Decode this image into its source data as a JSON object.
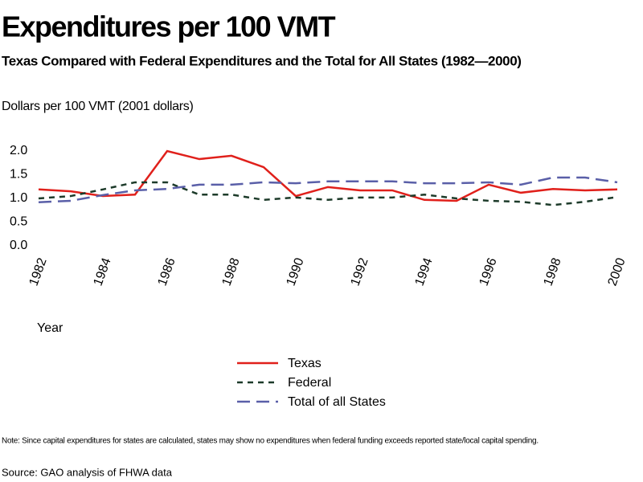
{
  "title": "Expenditures per 100 VMT",
  "subtitle": "Texas Compared with Federal Expenditures and the Total for All States (1982—2000)",
  "note": "Note: Since capital expenditures for states are calculated, states may show no expenditures when federal funding exceeds reported state/local capital spending.",
  "source": "Source: GAO analysis of FHWA data",
  "chart_data": {
    "type": "line",
    "y_label": "Dollars per 100 VMT (2001 dollars)",
    "x_label": "Year",
    "x": [
      1982,
      1983,
      1984,
      1985,
      1986,
      1987,
      1988,
      1989,
      1990,
      1991,
      1992,
      1993,
      1994,
      1995,
      1996,
      1997,
      1998,
      1999,
      2000
    ],
    "xlim": [
      1982,
      2000
    ],
    "xticks": [
      1982,
      1984,
      1986,
      1988,
      1990,
      1992,
      1994,
      1996,
      1998,
      2000
    ],
    "ylim": [
      0,
      2
    ],
    "yticks": [
      {
        "value": 0,
        "label": "0.0"
      },
      0.5,
      {
        "value": 1,
        "label": "1.0"
      },
      1.5,
      {
        "value": 2,
        "label": "2.0"
      }
    ],
    "grid": false,
    "legend": "bottom",
    "series": [
      {
        "name": "Texas",
        "color": "#e0201b",
        "dash": "solid",
        "values": [
          1.19,
          1.15,
          1.05,
          1.08,
          2.0,
          1.83,
          1.9,
          1.66,
          1.05,
          1.24,
          1.17,
          1.17,
          0.97,
          0.95,
          1.29,
          1.12,
          1.2,
          1.17,
          1.19
        ]
      },
      {
        "name": "Federal",
        "color": "#1d3b2a",
        "dash": "dashed",
        "values": [
          1.0,
          1.05,
          1.19,
          1.34,
          1.34,
          1.08,
          1.08,
          0.97,
          1.02,
          0.97,
          1.02,
          1.02,
          1.08,
          1.0,
          0.95,
          0.93,
          0.86,
          0.93,
          1.03
        ]
      },
      {
        "name": "Total of all States",
        "color": "#5a5fa8",
        "dash": "longdash",
        "values": [
          0.92,
          0.95,
          1.07,
          1.17,
          1.2,
          1.29,
          1.29,
          1.34,
          1.32,
          1.36,
          1.36,
          1.36,
          1.32,
          1.32,
          1.34,
          1.29,
          1.44,
          1.44,
          1.34
        ]
      }
    ]
  }
}
